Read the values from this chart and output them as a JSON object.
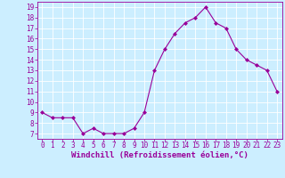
{
  "x": [
    0,
    1,
    2,
    3,
    4,
    5,
    6,
    7,
    8,
    9,
    10,
    11,
    12,
    13,
    14,
    15,
    16,
    17,
    18,
    19,
    20,
    21,
    22,
    23
  ],
  "y": [
    9,
    8.5,
    8.5,
    8.5,
    7,
    7.5,
    7,
    7,
    7,
    7.5,
    9,
    13,
    15,
    16.5,
    17.5,
    18,
    19,
    17.5,
    17,
    15,
    14,
    13.5,
    13,
    11
  ],
  "line_color": "#990099",
  "marker": "D",
  "marker_size": 2,
  "bg_color": "#cceeff",
  "grid_color": "#ffffff",
  "xlabel": "Windchill (Refroidissement éolien,°C)",
  "ylim": [
    6.5,
    19.5
  ],
  "xlim": [
    -0.5,
    23.5
  ],
  "yticks": [
    7,
    8,
    9,
    10,
    11,
    12,
    13,
    14,
    15,
    16,
    17,
    18,
    19
  ],
  "xticks": [
    0,
    1,
    2,
    3,
    4,
    5,
    6,
    7,
    8,
    9,
    10,
    11,
    12,
    13,
    14,
    15,
    16,
    17,
    18,
    19,
    20,
    21,
    22,
    23
  ],
  "tick_fontsize": 5.5,
  "xlabel_fontsize": 6.5,
  "xlabel_fontweight": "bold"
}
